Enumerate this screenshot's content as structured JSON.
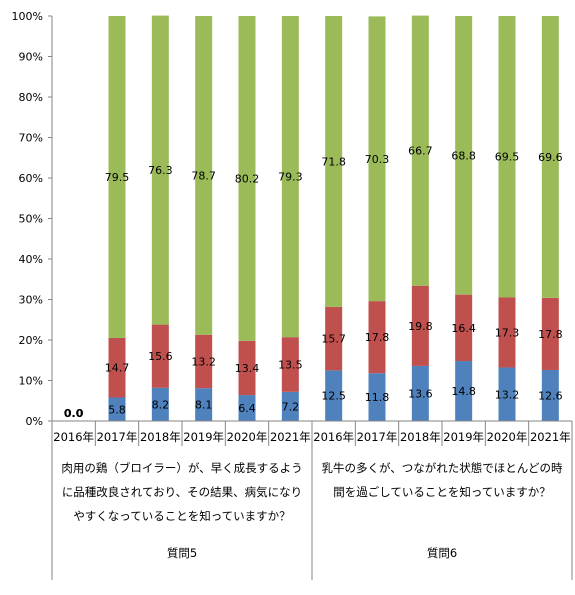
{
  "chart_data": {
    "type": "bar",
    "stacked": true,
    "percent_stacked": true,
    "ylim": [
      0,
      100
    ],
    "y_ticks": [
      "0%",
      "10%",
      "20%",
      "30%",
      "40%",
      "50%",
      "60%",
      "70%",
      "80%",
      "90%",
      "100%"
    ],
    "grid": false,
    "legend": "none",
    "categories": [
      "2016年",
      "2017年",
      "2018年",
      "2019年",
      "2020年",
      "2021年",
      "2016年",
      "2017年",
      "2018年",
      "2019年",
      "2020年",
      "2021年"
    ],
    "series": [
      {
        "color": "#4f81bd",
        "values": [
          0.0,
          5.8,
          8.2,
          8.1,
          6.4,
          7.2,
          12.5,
          11.8,
          13.6,
          14.8,
          13.2,
          12.6
        ]
      },
      {
        "color": "#c0504d",
        "values": [
          0.0,
          14.7,
          15.6,
          13.2,
          13.4,
          13.5,
          15.7,
          17.8,
          19.8,
          16.4,
          17.3,
          17.8
        ]
      },
      {
        "color": "#9bbb59",
        "values": [
          0.0,
          79.5,
          76.3,
          78.7,
          80.2,
          79.3,
          71.8,
          70.3,
          66.7,
          68.8,
          69.5,
          69.6
        ]
      }
    ],
    "data_labels": [
      {
        "category": 0,
        "series": 0,
        "text": "0.0"
      },
      {
        "category": 0,
        "series": 1,
        "text": "0.0"
      }
    ],
    "groups": [
      {
        "question_lines": [
          "肉用の鶏（ブロイラー）が、早く成長するよう",
          "に品種改良されており、その結果、病気になり",
          "やすくなっていることを知っていますか？"
        ],
        "label": "質問5",
        "from": 0,
        "to": 5
      },
      {
        "question_lines": [
          "乳牛の多くが、つながれた状態でほとんどの時",
          "間を過ごしていることを知っていますか？"
        ],
        "label": "質問6",
        "from": 6,
        "to": 11
      }
    ]
  }
}
